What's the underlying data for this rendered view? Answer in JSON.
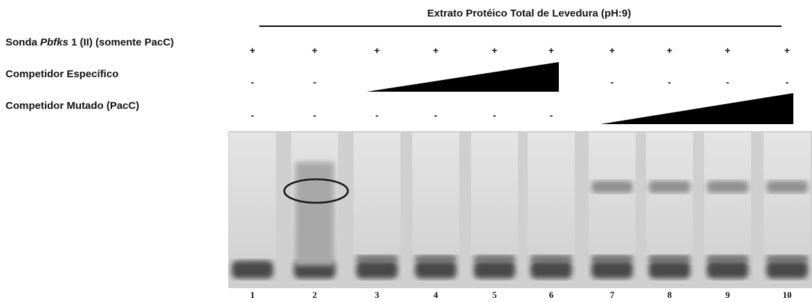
{
  "header": {
    "title": "Extrato Protéico Total de Levedura (pH:9)"
  },
  "rows": [
    {
      "label_parts": [
        "Sonda ",
        "Pbfks",
        " 1 (II) (somente PacC)"
      ],
      "symbols": [
        "+",
        "+",
        "+",
        "+",
        "+",
        "+",
        "+",
        "+",
        "+",
        "+"
      ]
    },
    {
      "label_parts": [
        "Competidor Específico"
      ],
      "symbols": [
        "-",
        "-",
        null,
        null,
        null,
        null,
        "-",
        "-",
        "-",
        "-"
      ]
    },
    {
      "label_parts": [
        "Competidor Mutado  (PacC)"
      ],
      "symbols": [
        "-",
        "-",
        "-",
        "-",
        "-",
        "-",
        null,
        null,
        null,
        null
      ]
    }
  ],
  "lanes": [
    "1",
    "2",
    "3",
    "4",
    "5",
    "6",
    "7",
    "8",
    "9",
    "10"
  ]
}
